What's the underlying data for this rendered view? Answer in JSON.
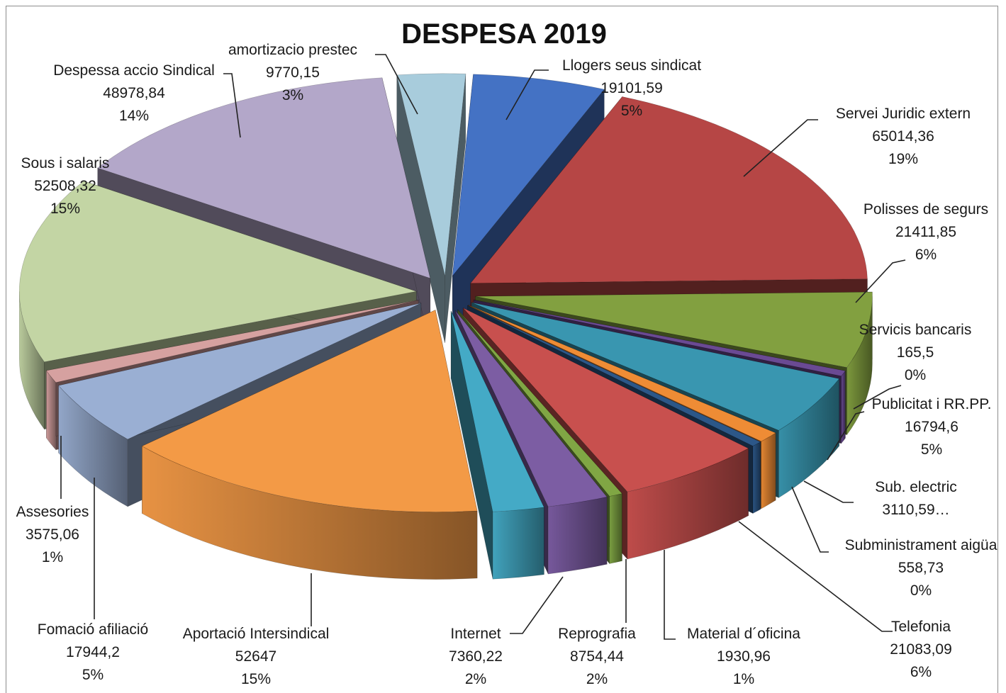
{
  "chart_data": {
    "type": "pie",
    "style": "3d-exploded",
    "title": "DESPESA 2019",
    "categories": [
      "Llogers seus sindicat",
      "Servei Juridic extern",
      "Polisses de segurs",
      "Servicis bancaris",
      "Publicitat i RR.PP.",
      "Sub. electric",
      "Subministrament aigüa",
      "Telefonia",
      "Material d´oficina",
      "Reprografia",
      "Internet",
      "Aportació Intersindical",
      "Fomació afiliació",
      "Assesories",
      "Sous i salaris",
      "Despessa accio Sindical",
      "amortizacio prestec"
    ],
    "values": [
      19101.59,
      65014.36,
      21411.85,
      165.5,
      16794.6,
      3110.59,
      558.73,
      21083.09,
      1930.96,
      8754.44,
      7360.22,
      52647,
      17944.2,
      3575.06,
      52508.32,
      48978.84,
      9770.15
    ],
    "value_labels": [
      "19101,59",
      "65014,36",
      "21411,85",
      "165,5",
      "16794,6",
      "3110,59…",
      "558,73",
      "21083,09",
      "1930,96",
      "8754,44",
      "7360,22",
      "52647",
      "17944,2",
      "3575,06",
      "52508,32",
      "48978,84",
      "9770,15"
    ],
    "percent_labels": [
      "5%",
      "19%",
      "6%",
      "0%",
      "5%",
      "",
      "0%",
      "6%",
      "1%",
      "2%",
      "2%",
      "15%",
      "5%",
      "1%",
      "15%",
      "14%",
      "3%"
    ],
    "colors": [
      "#4472c4",
      "#b64645",
      "#82a040",
      "#6a4a93",
      "#3996b0",
      "#ee8c35",
      "#2c5788",
      "#c8504e",
      "#80a644",
      "#7c5da3",
      "#44aac6",
      "#f39a46",
      "#9aafd3",
      "#d6a1a0",
      "#c3d5a4",
      "#b3a7c9",
      "#a8ccdc"
    ],
    "legend": "none"
  }
}
